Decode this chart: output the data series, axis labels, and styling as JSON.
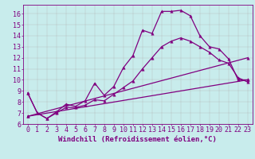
{
  "xlabel": "Windchill (Refroidissement éolien,°C)",
  "bg_color": "#c8ecec",
  "line_color": "#800080",
  "grid_color": "#b0b0b0",
  "xlim": [
    -0.5,
    23.5
  ],
  "ylim": [
    6.0,
    16.8
  ],
  "yticks": [
    6,
    7,
    8,
    9,
    10,
    11,
    12,
    13,
    14,
    15,
    16
  ],
  "xticks": [
    0,
    1,
    2,
    3,
    4,
    5,
    6,
    7,
    8,
    9,
    10,
    11,
    12,
    13,
    14,
    15,
    16,
    17,
    18,
    19,
    20,
    21,
    22,
    23
  ],
  "series": [
    {
      "x": [
        0,
        1,
        2,
        3,
        4,
        5,
        6,
        7,
        8,
        9,
        10,
        11,
        12,
        13,
        14,
        15,
        16,
        17,
        18,
        19,
        20,
        21,
        22,
        23
      ],
      "y": [
        8.8,
        7.0,
        6.5,
        7.1,
        7.8,
        7.6,
        8.1,
        9.7,
        8.6,
        9.4,
        11.1,
        12.2,
        14.5,
        14.2,
        16.2,
        16.2,
        16.3,
        15.8,
        14.0,
        13.0,
        12.8,
        11.9,
        10.0,
        10.0
      ]
    },
    {
      "x": [
        0,
        1,
        2,
        3,
        4,
        5,
        6,
        7,
        8,
        9,
        10,
        11,
        12,
        13,
        14,
        15,
        16,
        17,
        18,
        19,
        20,
        21,
        22,
        23
      ],
      "y": [
        8.8,
        7.0,
        6.5,
        7.0,
        7.5,
        7.5,
        7.7,
        8.2,
        8.1,
        8.7,
        9.3,
        9.9,
        11.0,
        12.0,
        13.0,
        13.5,
        13.8,
        13.5,
        13.0,
        12.5,
        11.8,
        11.5,
        10.2,
        9.8
      ]
    },
    {
      "x": [
        0,
        23
      ],
      "y": [
        6.7,
        10.0
      ]
    },
    {
      "x": [
        0,
        23
      ],
      "y": [
        6.7,
        12.0
      ]
    }
  ],
  "xlabel_fontsize": 6.5,
  "tick_fontsize": 6,
  "marker_size": 2.5,
  "line_width": 0.9
}
